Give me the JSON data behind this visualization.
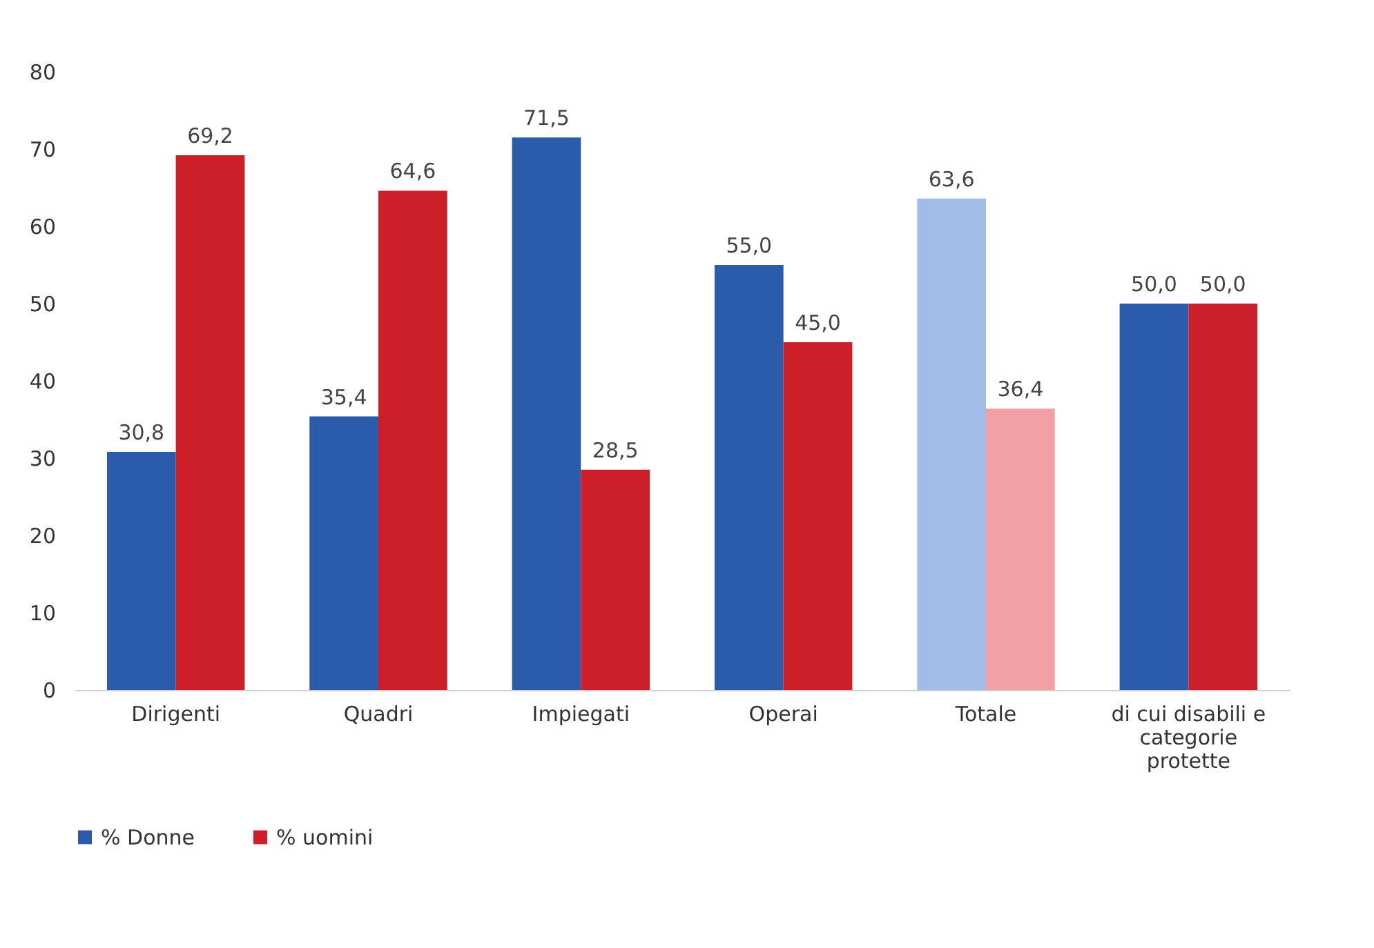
{
  "chart_data": {
    "type": "bar",
    "categories": [
      "Dirigenti",
      "Quadri",
      "Impiegati",
      "Operai",
      "Totale",
      "di cui disabili e categorie protette"
    ],
    "series": [
      {
        "name": "% Donne",
        "color": "#2b5cab",
        "colors": [
          "#2b5cab",
          "#2b5cab",
          "#2b5cab",
          "#2b5cab",
          "#a0bde8",
          "#2b5cab"
        ],
        "values": [
          30.8,
          35.4,
          71.5,
          55.0,
          63.6,
          50.0
        ],
        "value_labels": [
          "30,8",
          "35,4",
          "71,5",
          "55,0",
          "63,6",
          "50,0"
        ]
      },
      {
        "name": "% uomini",
        "color": "#cd1f29",
        "colors": [
          "#cd1f29",
          "#cd1f29",
          "#cd1f29",
          "#cd1f29",
          "#f1a1a6",
          "#cd1f29"
        ],
        "values": [
          69.2,
          64.6,
          28.5,
          45.0,
          36.4,
          50.0
        ],
        "value_labels": [
          "69,2",
          "64,6",
          "28,5",
          "45,0",
          "36,4",
          "50,0"
        ]
      }
    ],
    "ylim": [
      0,
      80
    ],
    "yticks": [
      0,
      10,
      20,
      30,
      40,
      50,
      60,
      70,
      80
    ],
    "grid": false,
    "legend": "bottom"
  }
}
